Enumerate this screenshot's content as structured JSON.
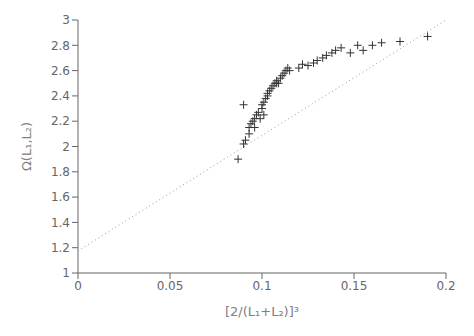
{
  "chart_data": {
    "type": "scatter",
    "xlabel": "[2/(L₁+L₂)]³",
    "ylabel": "Ω(L₁,L₂)",
    "series": [
      {
        "type": "line",
        "line_style": "dotted",
        "color": "#999999",
        "x": [
          0.0,
          0.2
        ],
        "values": [
          1.175,
          3.0
        ]
      },
      {
        "type": "scatter",
        "marker": "plus",
        "color": "#333333",
        "x": [
          0.087,
          0.09,
          0.09,
          0.091,
          0.093,
          0.093,
          0.094,
          0.095,
          0.096,
          0.096,
          0.097,
          0.098,
          0.099,
          0.1,
          0.1,
          0.101,
          0.101,
          0.102,
          0.103,
          0.103,
          0.104,
          0.105,
          0.106,
          0.107,
          0.108,
          0.108,
          0.109,
          0.11,
          0.111,
          0.112,
          0.113,
          0.114,
          0.115,
          0.12,
          0.122,
          0.125,
          0.128,
          0.13,
          0.133,
          0.135,
          0.138,
          0.14,
          0.143,
          0.148,
          0.152,
          0.155,
          0.16,
          0.165,
          0.175,
          0.19
        ],
        "values": [
          1.9,
          2.33,
          2.02,
          2.05,
          2.1,
          2.15,
          2.18,
          2.2,
          2.15,
          2.22,
          2.25,
          2.27,
          2.22,
          2.3,
          2.33,
          2.25,
          2.35,
          2.38,
          2.4,
          2.42,
          2.44,
          2.46,
          2.48,
          2.5,
          2.5,
          2.52,
          2.5,
          2.54,
          2.56,
          2.58,
          2.6,
          2.62,
          2.6,
          2.62,
          2.65,
          2.64,
          2.66,
          2.68,
          2.7,
          2.72,
          2.74,
          2.76,
          2.78,
          2.74,
          2.8,
          2.76,
          2.8,
          2.82,
          2.83,
          2.87
        ]
      }
    ],
    "xlim": [
      0.0,
      0.2
    ],
    "ylim": [
      1.0,
      3.0
    ],
    "xticks": [
      0,
      0.05,
      0.1,
      0.15,
      0.2
    ],
    "yticks": [
      1,
      1.2,
      1.4,
      1.6,
      1.8,
      2,
      2.2,
      2.4,
      2.6,
      2.8,
      3
    ],
    "grid": false
  }
}
